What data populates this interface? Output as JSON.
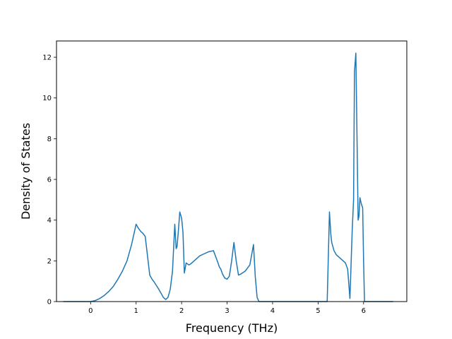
{
  "chart_data": {
    "type": "line",
    "title": "",
    "xlabel": "Frequency (THz)",
    "ylabel": "Density of States",
    "xlim": [
      -0.75,
      6.95
    ],
    "ylim": [
      0,
      12.8
    ],
    "xticks": [
      0,
      1,
      2,
      3,
      4,
      5,
      6
    ],
    "yticks": [
      0,
      2,
      4,
      6,
      8,
      10,
      12
    ],
    "grid": false,
    "legend": "none",
    "line_color": "#1f77b4",
    "series": [
      {
        "x": [
          -0.6,
          -0.2,
          0.0,
          0.1,
          0.2,
          0.3,
          0.4,
          0.5,
          0.6,
          0.7,
          0.8,
          0.9,
          1.0,
          1.05,
          1.1,
          1.15,
          1.2,
          1.3,
          1.35,
          1.4,
          1.5,
          1.6,
          1.65,
          1.7,
          1.75,
          1.8,
          1.85,
          1.88,
          1.9,
          1.93,
          1.96,
          2.0,
          2.03,
          2.06,
          2.1,
          2.13,
          2.16,
          2.2,
          2.3,
          2.4,
          2.5,
          2.6,
          2.7,
          2.8,
          2.83,
          2.86,
          2.9,
          2.95,
          3.0,
          3.05,
          3.1,
          3.15,
          3.2,
          3.25,
          3.3,
          3.4,
          3.5,
          3.58,
          3.62,
          3.66,
          3.7,
          3.75,
          3.9,
          4.5,
          5.2,
          5.25,
          5.28,
          5.3,
          5.35,
          5.4,
          5.5,
          5.6,
          5.65,
          5.7,
          5.75,
          5.78,
          5.8,
          5.83,
          5.85,
          5.88,
          5.9,
          5.92,
          5.95,
          5.98,
          6.0,
          6.02,
          6.05,
          6.2,
          6.65
        ],
        "y": [
          0,
          0,
          0,
          0.05,
          0.15,
          0.3,
          0.5,
          0.75,
          1.1,
          1.5,
          2.0,
          2.8,
          3.8,
          3.6,
          3.45,
          3.35,
          3.2,
          1.3,
          1.1,
          0.95,
          0.6,
          0.2,
          0.1,
          0.2,
          0.6,
          1.5,
          3.8,
          2.6,
          2.7,
          3.5,
          4.4,
          4.1,
          3.4,
          1.4,
          1.9,
          1.85,
          1.8,
          1.85,
          2.05,
          2.25,
          2.35,
          2.45,
          2.5,
          1.9,
          1.7,
          1.6,
          1.35,
          1.15,
          1.1,
          1.25,
          2.0,
          2.9,
          2.0,
          1.3,
          1.35,
          1.5,
          1.8,
          2.8,
          1.2,
          0.2,
          0,
          0,
          0,
          0,
          0,
          4.4,
          3.3,
          2.9,
          2.5,
          2.3,
          2.1,
          1.9,
          1.6,
          0.15,
          3.5,
          5.0,
          11.3,
          12.2,
          9.0,
          4.0,
          4.2,
          5.1,
          4.8,
          4.6,
          2.0,
          0,
          0,
          0,
          0
        ]
      }
    ]
  }
}
